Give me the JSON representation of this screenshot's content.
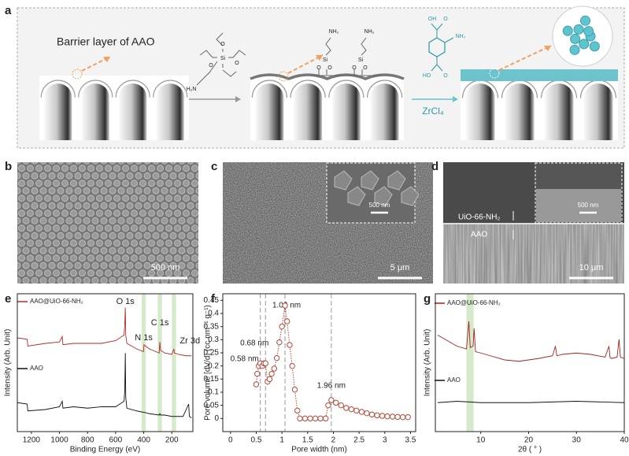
{
  "scheme": {
    "label": "a",
    "title": "Barrier layer of AAO",
    "reagent": "ZrCl₄",
    "silane_labels": [
      "Si",
      "H₂N",
      "O",
      "O",
      "O"
    ],
    "grafted_labels": [
      "NH₂",
      "NH₂",
      "Si",
      "Si",
      "O",
      "O",
      "O",
      "O"
    ],
    "linker_labels": [
      "OH",
      "NH₂",
      "HO",
      "O",
      "O"
    ]
  },
  "images": [
    {
      "label": "b",
      "scale_bar": "500 nm"
    },
    {
      "label": "c",
      "scale_bar": "5 μm",
      "inset_scale_bar": "500 nm"
    },
    {
      "label": "d",
      "scale_bar": "10 μm",
      "inset_scale_bar": "500 nm",
      "layers": [
        "UiO-66-NH₂",
        "AAO"
      ]
    }
  ],
  "chart_data": [
    {
      "type": "line",
      "label": "e",
      "xlabel": "Binding Energy (eV)",
      "ylabel": "Intensity (Arb. Unit)",
      "xlim": [
        1300,
        50
      ],
      "ylim": [
        0,
        100
      ],
      "xticks": [
        1200,
        1000,
        800,
        600,
        400,
        200
      ],
      "highlights": [
        [
          385,
          415
        ],
        [
          270,
          300
        ],
        [
          170,
          200
        ]
      ],
      "peaks": [
        {
          "label": "O 1s",
          "x": 531
        },
        {
          "label": "N 1s",
          "x": 400
        },
        {
          "label": "C 1s",
          "x": 285
        },
        {
          "label": "Zr 3d",
          "x": 183
        }
      ],
      "series": [
        {
          "name": "AAO@UiO-66-NH₂",
          "color": "#b22a2a",
          "x": [
            1300,
            1230,
            1225,
            1100,
            1000,
            980,
            975,
            900,
            800,
            700,
            600,
            540,
            535,
            531,
            528,
            520,
            450,
            402,
            398,
            360,
            290,
            285,
            280,
            250,
            200,
            185,
            182,
            150,
            100,
            60
          ],
          "values": [
            68,
            67,
            62,
            64,
            65,
            69,
            63,
            64,
            64,
            64,
            66,
            70,
            78,
            90,
            70,
            64,
            60,
            58,
            63,
            60,
            57,
            65,
            59,
            57,
            56,
            60,
            57,
            56,
            55,
            55
          ]
        },
        {
          "name": "AAO",
          "color": "#111111",
          "x": [
            1300,
            1230,
            1225,
            1100,
            1000,
            980,
            975,
            900,
            800,
            700,
            600,
            540,
            535,
            531,
            528,
            520,
            450,
            402,
            398,
            360,
            290,
            285,
            280,
            250,
            200,
            120,
            80,
            75,
            60
          ],
          "values": [
            21,
            20,
            15,
            16,
            18,
            22,
            17,
            18,
            17,
            18,
            18,
            22,
            30,
            57,
            25,
            17,
            15,
            14,
            14,
            13,
            12,
            13,
            12,
            12,
            11,
            11,
            20,
            11,
            10
          ]
        }
      ]
    },
    {
      "type": "line",
      "label": "f",
      "xlabel": "Pore width (nm)",
      "ylabel": "Pore volume [dV/d] (cc nm⁻¹ g⁻¹)",
      "xlim": [
        -0.15,
        3.6
      ],
      "ylim": [
        -0.05,
        0.475
      ],
      "xticks": [
        0,
        0.5,
        1,
        1.5,
        2,
        2.5,
        3,
        3.5
      ],
      "yticks": [
        0,
        0.05,
        0.1,
        0.15,
        0.2,
        0.25,
        0.3,
        0.35,
        0.4,
        0.45
      ],
      "markers": true,
      "vlines": [
        {
          "x": 0.58,
          "label": "0.58 nm"
        },
        {
          "x": 0.68,
          "label": "0.68 nm"
        },
        {
          "x": 1.06,
          "label": "1.06 nm"
        },
        {
          "x": 1.96,
          "label": "1.96 nm"
        }
      ],
      "series": [
        {
          "color": "#b5473a",
          "x": [
            0.5,
            0.52,
            0.55,
            0.58,
            0.62,
            0.65,
            0.68,
            0.72,
            0.76,
            0.8,
            0.85,
            0.9,
            0.95,
            1.0,
            1.06,
            1.1,
            1.15,
            1.2,
            1.25,
            1.3,
            1.35,
            1.45,
            1.55,
            1.65,
            1.75,
            1.85,
            1.9,
            1.96,
            2.05,
            2.15,
            2.25,
            2.35,
            2.45,
            2.55,
            2.65,
            2.75,
            2.85,
            2.95,
            3.05,
            3.15,
            3.25,
            3.35,
            3.45
          ],
          "values": [
            0.13,
            0.17,
            0.2,
            0.21,
            0.2,
            0.21,
            0.21,
            0.14,
            0.15,
            0.17,
            0.19,
            0.23,
            0.29,
            0.35,
            0.43,
            0.37,
            0.28,
            0.2,
            0.11,
            0.03,
            0,
            0,
            0,
            0,
            0,
            0,
            0.05,
            0.07,
            0.06,
            0.05,
            0.04,
            0.035,
            0.03,
            0.025,
            0.02,
            0.015,
            0.012,
            0.01,
            0.008,
            0.007,
            0.006,
            0.005,
            0.005
          ]
        }
      ]
    },
    {
      "type": "line",
      "label": "g",
      "xlabel": "2θ ( ° )",
      "ylabel": "Intensity (Arb. Unit)",
      "xlim": [
        0.5,
        40
      ],
      "ylim": [
        0,
        100
      ],
      "xticks": [
        10,
        20,
        30,
        40
      ],
      "highlights": [
        [
          7,
          8.5
        ]
      ],
      "series": [
        {
          "name": "AAO@UiO-66-NH₂",
          "color": "#a32020",
          "x": [
            1,
            3,
            5,
            7,
            7.3,
            7.5,
            7.8,
            8.4,
            8.6,
            8.9,
            10,
            12,
            15,
            18,
            20,
            22,
            25,
            25.6,
            25.9,
            27,
            30,
            33,
            36,
            36.8,
            37,
            37.3,
            38.5,
            38.9,
            39.2,
            40
          ],
          "values": [
            70,
            66,
            62,
            60,
            72,
            80,
            61,
            62,
            75,
            58,
            57,
            55,
            52,
            51,
            52,
            53,
            55,
            62,
            55,
            56,
            57,
            56,
            54,
            62,
            54,
            53,
            54,
            67,
            54,
            53
          ]
        },
        {
          "name": "AAO",
          "color": "#111111",
          "x": [
            1,
            5,
            10,
            20,
            30,
            40
          ],
          "values": [
            21,
            22,
            21,
            21,
            22,
            21
          ]
        }
      ]
    }
  ]
}
